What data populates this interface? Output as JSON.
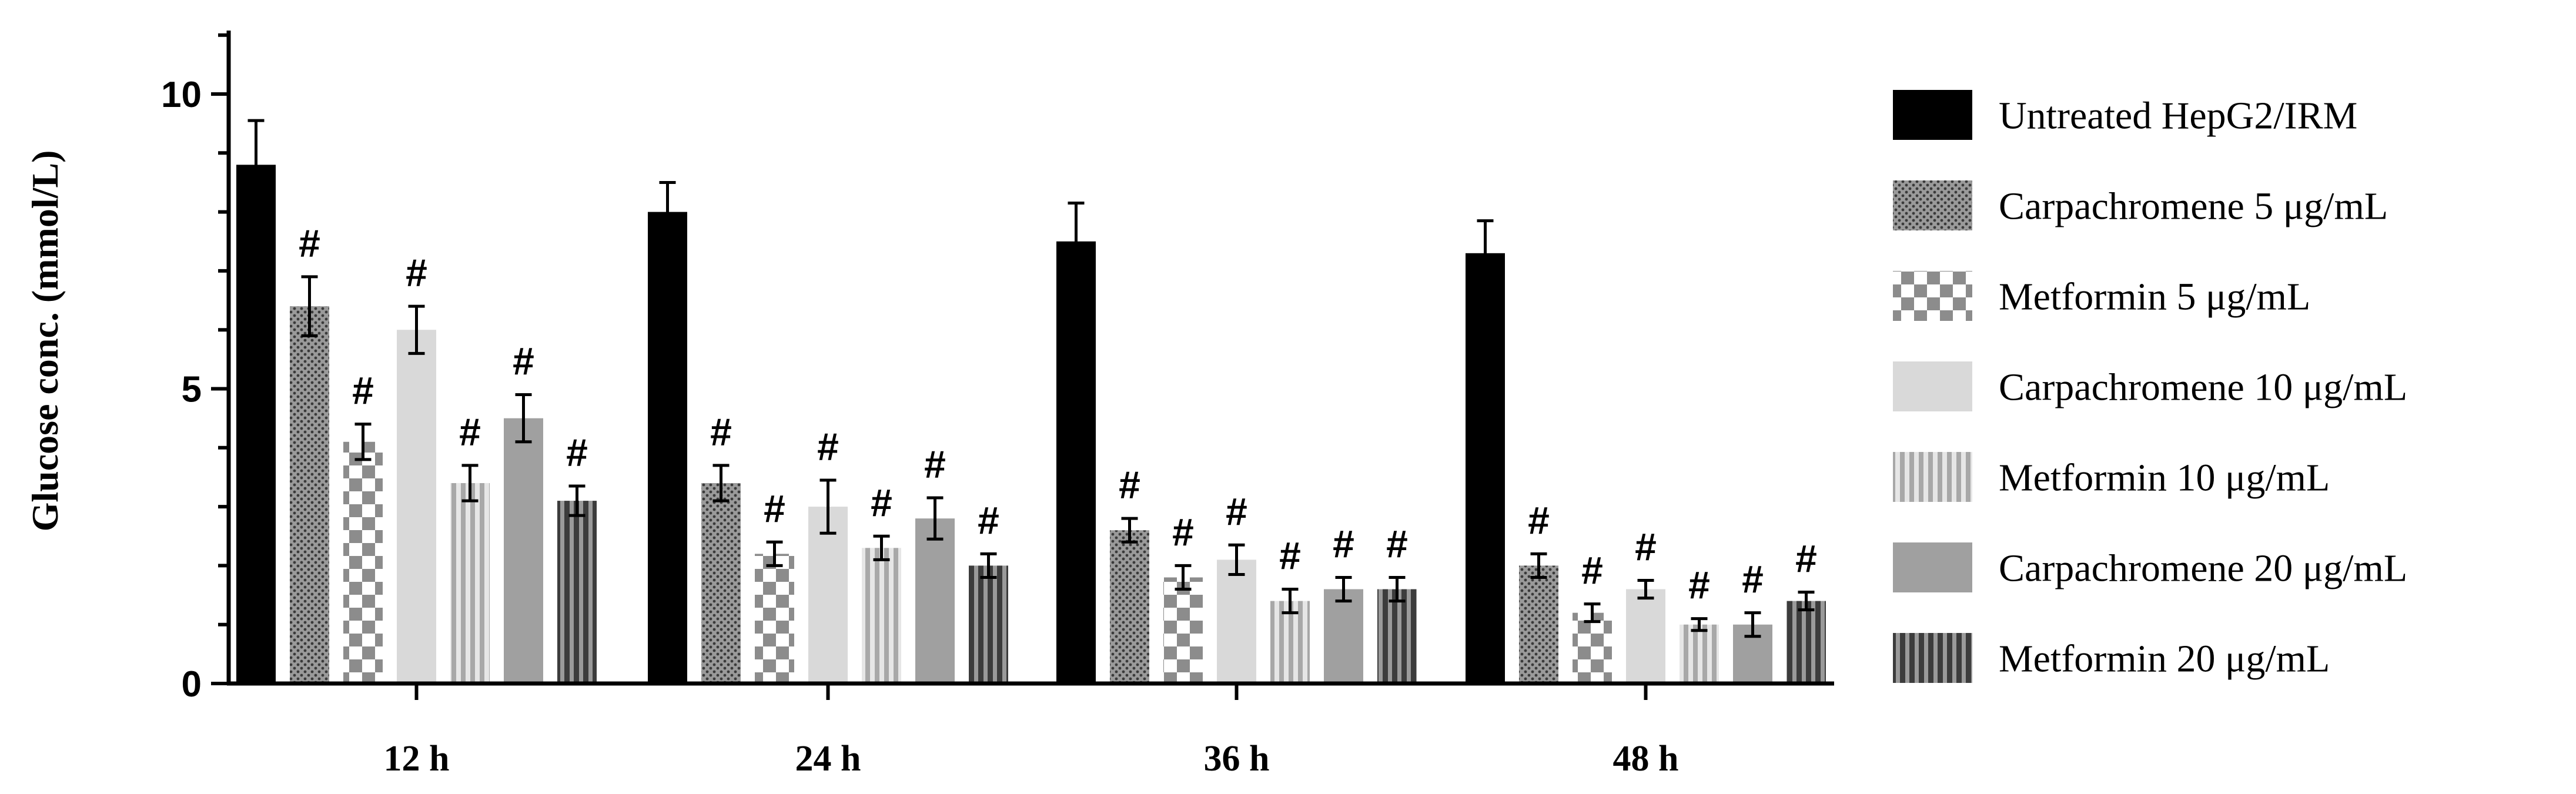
{
  "chart_data": {
    "type": "bar",
    "title": "",
    "xlabel": "",
    "ylabel": "Glucose conc. (mmol/L)",
    "ylim": [
      0,
      11
    ],
    "yticks": [
      0,
      5,
      10
    ],
    "categories": [
      "12 h",
      "24 h",
      "36 h",
      "48 h"
    ],
    "significance_marker": "#",
    "legend_position": "right",
    "series": [
      {
        "name": "Untreated HepG2/IRM",
        "values": [
          8.8,
          8.0,
          7.5,
          7.3
        ],
        "errors": [
          0.75,
          0.5,
          0.65,
          0.55
        ],
        "significant": [
          false,
          false,
          false,
          false
        ],
        "pattern": "solid-black",
        "color": "#000000"
      },
      {
        "name": "Carpachromene 5 μg/mL",
        "values": [
          6.4,
          3.4,
          2.6,
          2.0
        ],
        "errors": [
          0.5,
          0.3,
          0.2,
          0.2
        ],
        "significant": [
          true,
          true,
          true,
          true
        ],
        "pattern": "dots",
        "color": "#8a8a8a"
      },
      {
        "name": "Metformin 5 μg/mL",
        "values": [
          4.1,
          2.2,
          1.8,
          1.2
        ],
        "errors": [
          0.3,
          0.2,
          0.2,
          0.15
        ],
        "significant": [
          true,
          true,
          true,
          true
        ],
        "pattern": "checker",
        "color": "#9a9a9a"
      },
      {
        "name": "Carpachromene 10 μg/mL",
        "values": [
          6.0,
          3.0,
          2.1,
          1.6
        ],
        "errors": [
          0.4,
          0.45,
          0.25,
          0.15
        ],
        "significant": [
          true,
          true,
          true,
          true
        ],
        "pattern": "solid-light",
        "color": "#d9d9d9"
      },
      {
        "name": "Metformin 10 μg/mL",
        "values": [
          3.4,
          2.3,
          1.4,
          1.0
        ],
        "errors": [
          0.3,
          0.2,
          0.2,
          0.1
        ],
        "significant": [
          true,
          true,
          true,
          true
        ],
        "pattern": "vlines-light",
        "color": "#b4b4b4"
      },
      {
        "name": "Carpachromene 20 μg/mL",
        "values": [
          4.5,
          2.8,
          1.6,
          1.0
        ],
        "errors": [
          0.4,
          0.35,
          0.2,
          0.2
        ],
        "significant": [
          true,
          true,
          true,
          true
        ],
        "pattern": "solid-mid",
        "color": "#a0a0a0"
      },
      {
        "name": "Metformin 20 μg/mL",
        "values": [
          3.1,
          2.0,
          1.6,
          1.4
        ],
        "errors": [
          0.25,
          0.2,
          0.2,
          0.15
        ],
        "significant": [
          true,
          true,
          true,
          true
        ],
        "pattern": "vlines-dark",
        "color": "#555555"
      }
    ]
  }
}
